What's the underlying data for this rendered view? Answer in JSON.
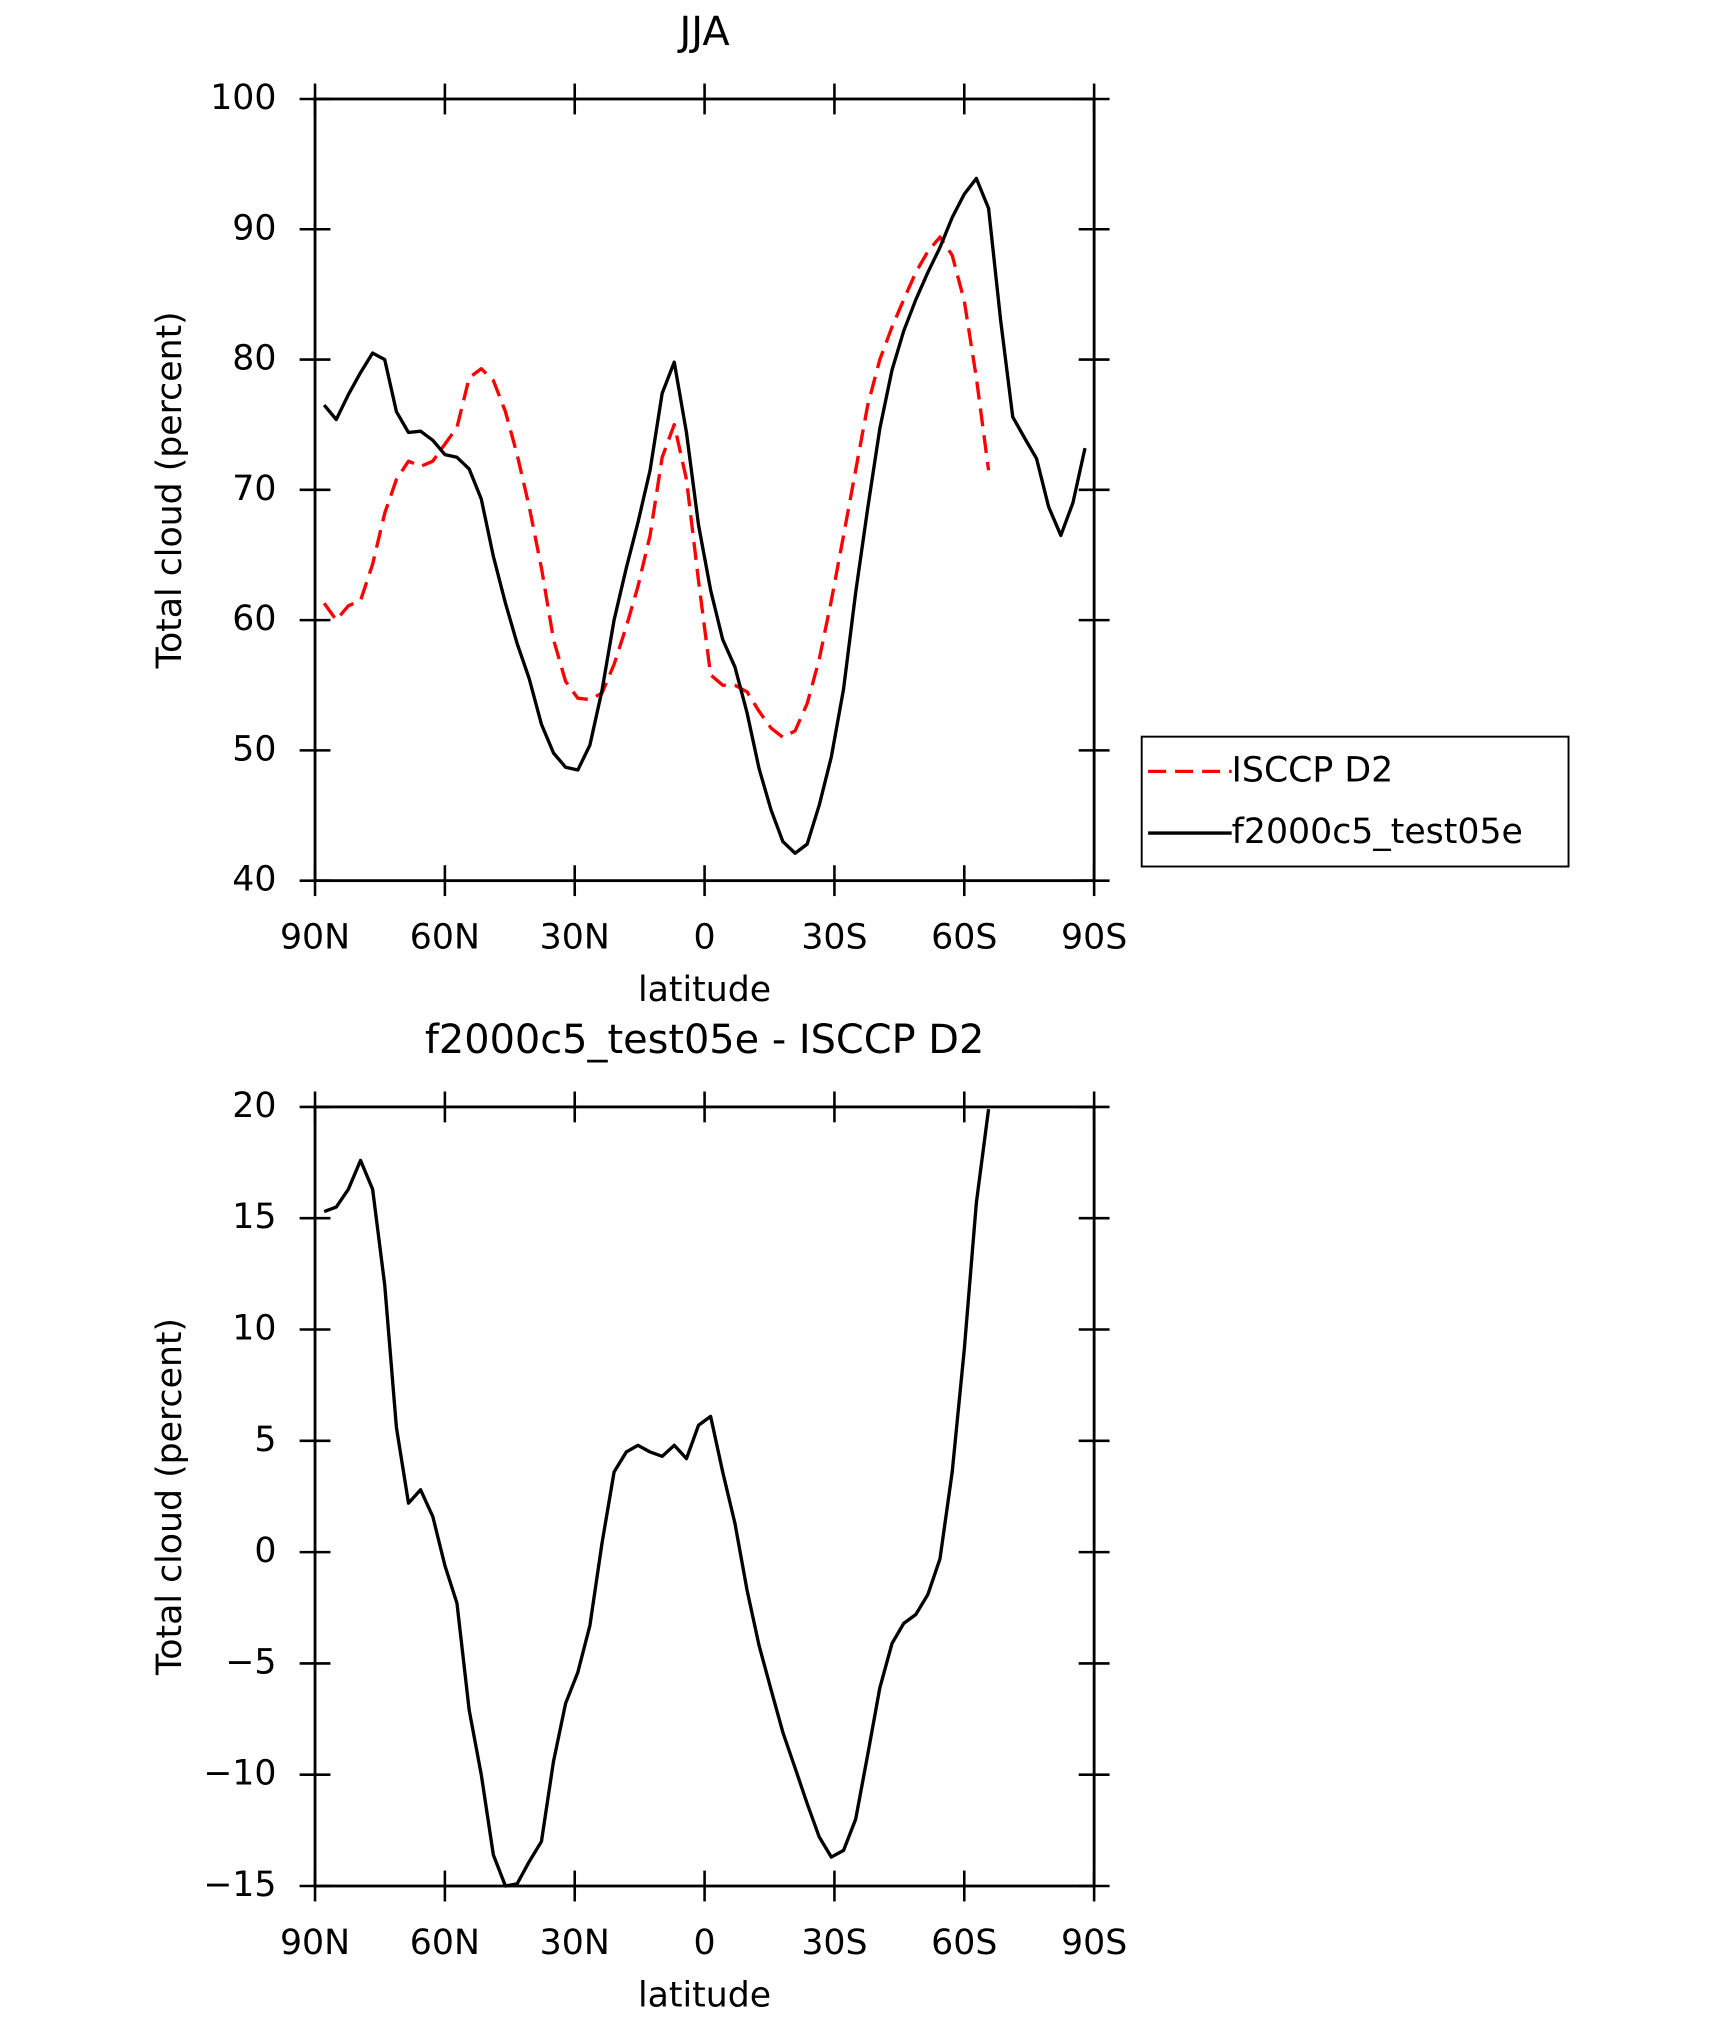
{
  "chart_data": [
    {
      "type": "line",
      "title": "JJA",
      "xlabel": "latitude",
      "ylabel": "Total cloud (percent)",
      "x": [
        87.9,
        85.1,
        82.3,
        79.5,
        76.7,
        73.9,
        71.2,
        68.4,
        65.6,
        62.8,
        60.0,
        57.2,
        54.4,
        51.6,
        48.8,
        46.0,
        43.3,
        40.5,
        37.7,
        34.9,
        32.1,
        29.3,
        26.5,
        23.7,
        20.9,
        18.1,
        15.4,
        12.6,
        9.8,
        7.0,
        4.2,
        1.4,
        -1.4,
        -4.2,
        -7.0,
        -9.8,
        -12.6,
        -15.4,
        -18.1,
        -20.9,
        -23.7,
        -26.5,
        -29.3,
        -32.1,
        -34.9,
        -37.7,
        -40.5,
        -43.3,
        -46.0,
        -48.8,
        -51.6,
        -54.4,
        -57.2,
        -60.0,
        -62.8,
        -65.6,
        -68.4,
        -71.2,
        -73.9,
        -76.7,
        -79.5,
        -82.3,
        -85.1,
        -87.9
      ],
      "series": [
        {
          "name": "ISCCP D2",
          "color": "#ff0000",
          "dash": true,
          "values": [
            61.3,
            60.0,
            61.1,
            61.5,
            64.3,
            68.2,
            70.8,
            72.2,
            71.8,
            72.2,
            73.5,
            74.8,
            78.6,
            79.3,
            78.4,
            76.0,
            72.7,
            68.7,
            64.0,
            58.5,
            55.3,
            54.0,
            53.9,
            54.4,
            56.6,
            59.5,
            62.6,
            66.5,
            72.5,
            75.0,
            70.8,
            63.0,
            55.8,
            55.0,
            55.0,
            54.5,
            53.0,
            51.7,
            51.0,
            51.5,
            53.6,
            57.0,
            61.5,
            66.5,
            71.5,
            76.5,
            80.0,
            82.5,
            84.6,
            86.7,
            88.3,
            89.4,
            88.0,
            84.5,
            78.6,
            71.5,
            null,
            null,
            null,
            null,
            null,
            null,
            null,
            null
          ]
        },
        {
          "name": "f2000c5_test05e",
          "color": "#000000",
          "dash": false,
          "values": [
            76.5,
            75.4,
            77.3,
            79.0,
            80.5,
            80.0,
            76.0,
            74.4,
            74.5,
            73.8,
            72.7,
            72.5,
            71.6,
            69.3,
            64.9,
            61.3,
            58.2,
            55.5,
            52.0,
            49.8,
            48.7,
            48.5,
            50.4,
            54.6,
            60.0,
            64.0,
            67.5,
            71.5,
            77.4,
            79.8,
            74.4,
            67.3,
            62.3,
            58.5,
            56.4,
            52.9,
            48.6,
            45.4,
            43.0,
            42.1,
            42.8,
            45.8,
            49.5,
            54.7,
            62.1,
            68.6,
            74.7,
            79.2,
            82.2,
            84.6,
            86.7,
            88.6,
            90.9,
            92.7,
            93.9,
            91.6,
            83.0,
            75.6,
            74.0,
            72.4,
            68.7,
            66.5,
            69.0,
            73.2
          ]
        }
      ],
      "xlim": [
        90,
        -90
      ],
      "xticks": [
        {
          "value": 90,
          "label": "90N"
        },
        {
          "value": 60,
          "label": "60N"
        },
        {
          "value": 30,
          "label": "30N"
        },
        0,
        {
          "value": -30,
          "label": "30S"
        },
        {
          "value": -60,
          "label": "60S"
        },
        {
          "value": -90,
          "label": "90S"
        }
      ],
      "ylim": [
        40,
        100
      ],
      "yticks": [
        40,
        50,
        60,
        70,
        80,
        90,
        100
      ],
      "legend": "right"
    },
    {
      "type": "line",
      "title": "f2000c5_test05e - ISCCP D2",
      "xlabel": "latitude",
      "ylabel": "Total cloud (percent)",
      "x": [
        87.9,
        85.1,
        82.3,
        79.5,
        76.7,
        73.9,
        71.2,
        68.4,
        65.6,
        62.8,
        60.0,
        57.2,
        54.4,
        51.6,
        48.8,
        46.0,
        43.3,
        40.5,
        37.7,
        34.9,
        32.1,
        29.3,
        26.5,
        23.7,
        20.9,
        18.1,
        15.4,
        12.6,
        9.8,
        7.0,
        4.2,
        1.4,
        -1.4,
        -4.2,
        -7.0,
        -9.8,
        -12.6,
        -15.4,
        -18.1,
        -20.9,
        -23.7,
        -26.5,
        -29.3,
        -32.1,
        -34.9,
        -37.7,
        -40.5,
        -43.3,
        -46.0,
        -48.8,
        -51.6,
        -54.4,
        -57.2,
        -60.0,
        -62.8,
        -65.6
      ],
      "series": [
        {
          "color": "#000000",
          "dash": false,
          "values": [
            15.3,
            15.5,
            16.3,
            17.6,
            16.3,
            12.0,
            5.6,
            2.2,
            2.8,
            1.6,
            -0.6,
            -2.3,
            -7.1,
            -10.0,
            -13.6,
            -15.0,
            -14.9,
            -13.9,
            -13.0,
            -9.4,
            -6.8,
            -5.4,
            -3.3,
            0.4,
            3.6,
            4.5,
            4.8,
            4.5,
            4.3,
            4.8,
            4.2,
            5.7,
            6.1,
            3.6,
            1.3,
            -1.7,
            -4.2,
            -6.2,
            -8.1,
            -9.7,
            -11.3,
            -12.8,
            -13.7,
            -13.4,
            -12.0,
            -9.1,
            -6.1,
            -4.1,
            -3.2,
            -2.8,
            -1.9,
            -0.3,
            3.6,
            9.1,
            15.7,
            19.9
          ]
        }
      ],
      "xlim": [
        90,
        -90
      ],
      "xticks": [
        {
          "value": 90,
          "label": "90N"
        },
        {
          "value": 60,
          "label": "60N"
        },
        {
          "value": 30,
          "label": "30N"
        },
        0,
        {
          "value": -30,
          "label": "30S"
        },
        {
          "value": -60,
          "label": "60S"
        },
        {
          "value": -90,
          "label": "90S"
        }
      ],
      "ylim": [
        -15,
        20
      ],
      "yticks": [
        {
          "value": -15,
          "label": "−15"
        },
        {
          "value": -10,
          "label": "−10"
        },
        {
          "value": -5,
          "label": "−5"
        },
        0,
        5,
        10,
        15,
        20
      ]
    }
  ]
}
